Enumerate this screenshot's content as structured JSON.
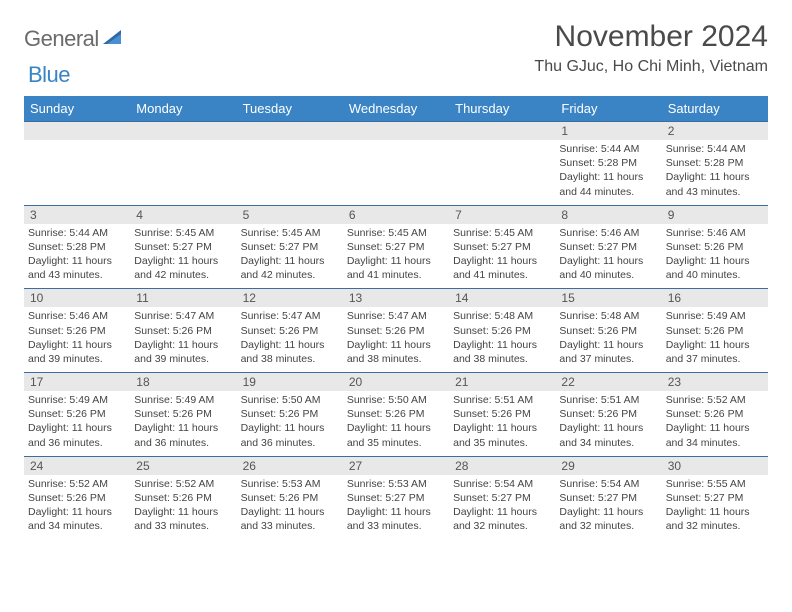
{
  "brand": {
    "part1": "General",
    "part2": "Blue"
  },
  "title": "November 2024",
  "location": "Thu GJuc, Ho Chi Minh, Vietnam",
  "colors": {
    "header_bg": "#3a84c5",
    "header_text": "#ffffff",
    "daynum_bg": "#e8e8e8",
    "border": "#3a6ea0",
    "text": "#444444",
    "title_text": "#4a4a4a",
    "logo_gray": "#6b6b6b",
    "logo_blue": "#3a84c5"
  },
  "day_names": [
    "Sunday",
    "Monday",
    "Tuesday",
    "Wednesday",
    "Thursday",
    "Friday",
    "Saturday"
  ],
  "weeks": [
    [
      {
        "n": "",
        "sr": "",
        "ss": "",
        "dl": ""
      },
      {
        "n": "",
        "sr": "",
        "ss": "",
        "dl": ""
      },
      {
        "n": "",
        "sr": "",
        "ss": "",
        "dl": ""
      },
      {
        "n": "",
        "sr": "",
        "ss": "",
        "dl": ""
      },
      {
        "n": "",
        "sr": "",
        "ss": "",
        "dl": ""
      },
      {
        "n": "1",
        "sr": "Sunrise: 5:44 AM",
        "ss": "Sunset: 5:28 PM",
        "dl": "Daylight: 11 hours and 44 minutes."
      },
      {
        "n": "2",
        "sr": "Sunrise: 5:44 AM",
        "ss": "Sunset: 5:28 PM",
        "dl": "Daylight: 11 hours and 43 minutes."
      }
    ],
    [
      {
        "n": "3",
        "sr": "Sunrise: 5:44 AM",
        "ss": "Sunset: 5:28 PM",
        "dl": "Daylight: 11 hours and 43 minutes."
      },
      {
        "n": "4",
        "sr": "Sunrise: 5:45 AM",
        "ss": "Sunset: 5:27 PM",
        "dl": "Daylight: 11 hours and 42 minutes."
      },
      {
        "n": "5",
        "sr": "Sunrise: 5:45 AM",
        "ss": "Sunset: 5:27 PM",
        "dl": "Daylight: 11 hours and 42 minutes."
      },
      {
        "n": "6",
        "sr": "Sunrise: 5:45 AM",
        "ss": "Sunset: 5:27 PM",
        "dl": "Daylight: 11 hours and 41 minutes."
      },
      {
        "n": "7",
        "sr": "Sunrise: 5:45 AM",
        "ss": "Sunset: 5:27 PM",
        "dl": "Daylight: 11 hours and 41 minutes."
      },
      {
        "n": "8",
        "sr": "Sunrise: 5:46 AM",
        "ss": "Sunset: 5:27 PM",
        "dl": "Daylight: 11 hours and 40 minutes."
      },
      {
        "n": "9",
        "sr": "Sunrise: 5:46 AM",
        "ss": "Sunset: 5:26 PM",
        "dl": "Daylight: 11 hours and 40 minutes."
      }
    ],
    [
      {
        "n": "10",
        "sr": "Sunrise: 5:46 AM",
        "ss": "Sunset: 5:26 PM",
        "dl": "Daylight: 11 hours and 39 minutes."
      },
      {
        "n": "11",
        "sr": "Sunrise: 5:47 AM",
        "ss": "Sunset: 5:26 PM",
        "dl": "Daylight: 11 hours and 39 minutes."
      },
      {
        "n": "12",
        "sr": "Sunrise: 5:47 AM",
        "ss": "Sunset: 5:26 PM",
        "dl": "Daylight: 11 hours and 38 minutes."
      },
      {
        "n": "13",
        "sr": "Sunrise: 5:47 AM",
        "ss": "Sunset: 5:26 PM",
        "dl": "Daylight: 11 hours and 38 minutes."
      },
      {
        "n": "14",
        "sr": "Sunrise: 5:48 AM",
        "ss": "Sunset: 5:26 PM",
        "dl": "Daylight: 11 hours and 38 minutes."
      },
      {
        "n": "15",
        "sr": "Sunrise: 5:48 AM",
        "ss": "Sunset: 5:26 PM",
        "dl": "Daylight: 11 hours and 37 minutes."
      },
      {
        "n": "16",
        "sr": "Sunrise: 5:49 AM",
        "ss": "Sunset: 5:26 PM",
        "dl": "Daylight: 11 hours and 37 minutes."
      }
    ],
    [
      {
        "n": "17",
        "sr": "Sunrise: 5:49 AM",
        "ss": "Sunset: 5:26 PM",
        "dl": "Daylight: 11 hours and 36 minutes."
      },
      {
        "n": "18",
        "sr": "Sunrise: 5:49 AM",
        "ss": "Sunset: 5:26 PM",
        "dl": "Daylight: 11 hours and 36 minutes."
      },
      {
        "n": "19",
        "sr": "Sunrise: 5:50 AM",
        "ss": "Sunset: 5:26 PM",
        "dl": "Daylight: 11 hours and 36 minutes."
      },
      {
        "n": "20",
        "sr": "Sunrise: 5:50 AM",
        "ss": "Sunset: 5:26 PM",
        "dl": "Daylight: 11 hours and 35 minutes."
      },
      {
        "n": "21",
        "sr": "Sunrise: 5:51 AM",
        "ss": "Sunset: 5:26 PM",
        "dl": "Daylight: 11 hours and 35 minutes."
      },
      {
        "n": "22",
        "sr": "Sunrise: 5:51 AM",
        "ss": "Sunset: 5:26 PM",
        "dl": "Daylight: 11 hours and 34 minutes."
      },
      {
        "n": "23",
        "sr": "Sunrise: 5:52 AM",
        "ss": "Sunset: 5:26 PM",
        "dl": "Daylight: 11 hours and 34 minutes."
      }
    ],
    [
      {
        "n": "24",
        "sr": "Sunrise: 5:52 AM",
        "ss": "Sunset: 5:26 PM",
        "dl": "Daylight: 11 hours and 34 minutes."
      },
      {
        "n": "25",
        "sr": "Sunrise: 5:52 AM",
        "ss": "Sunset: 5:26 PM",
        "dl": "Daylight: 11 hours and 33 minutes."
      },
      {
        "n": "26",
        "sr": "Sunrise: 5:53 AM",
        "ss": "Sunset: 5:26 PM",
        "dl": "Daylight: 11 hours and 33 minutes."
      },
      {
        "n": "27",
        "sr": "Sunrise: 5:53 AM",
        "ss": "Sunset: 5:27 PM",
        "dl": "Daylight: 11 hours and 33 minutes."
      },
      {
        "n": "28",
        "sr": "Sunrise: 5:54 AM",
        "ss": "Sunset: 5:27 PM",
        "dl": "Daylight: 11 hours and 32 minutes."
      },
      {
        "n": "29",
        "sr": "Sunrise: 5:54 AM",
        "ss": "Sunset: 5:27 PM",
        "dl": "Daylight: 11 hours and 32 minutes."
      },
      {
        "n": "30",
        "sr": "Sunrise: 5:55 AM",
        "ss": "Sunset: 5:27 PM",
        "dl": "Daylight: 11 hours and 32 minutes."
      }
    ]
  ]
}
